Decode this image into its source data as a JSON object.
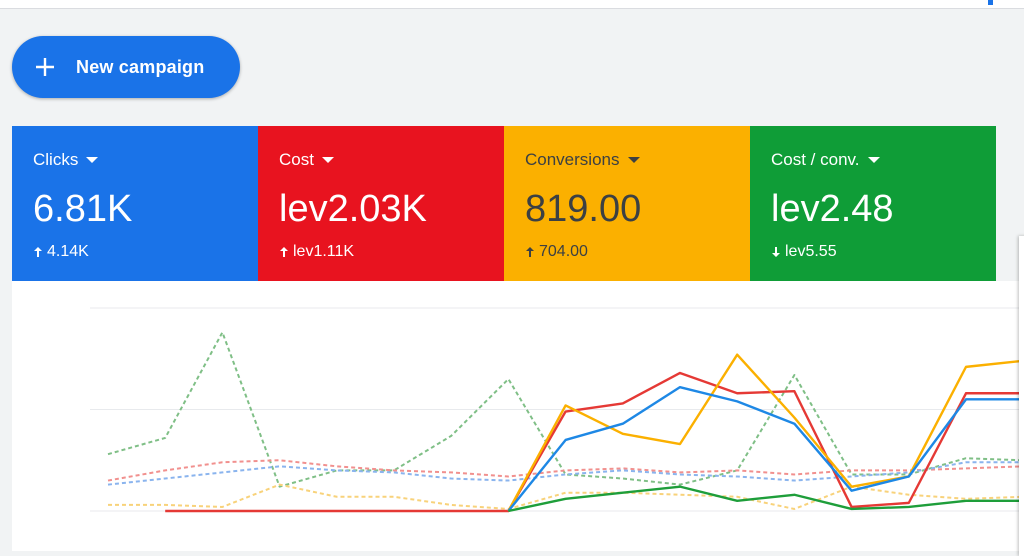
{
  "button": {
    "label": "New campaign"
  },
  "metrics": [
    {
      "label": "Clicks",
      "value": "6.81K",
      "change": "4.14K",
      "direction": "up",
      "color": "#1a73e8"
    },
    {
      "label": "Cost",
      "value": "lev2.03K",
      "change": "lev1.11K",
      "direction": "up",
      "color": "#e8131f"
    },
    {
      "label": "Conversions",
      "value": "819.00",
      "change": "704.00",
      "direction": "up",
      "color": "#fbb000"
    },
    {
      "label": "Cost / conv.",
      "value": "lev2.48",
      "change": "lev5.55",
      "direction": "down",
      "color": "#0f9d37"
    }
  ],
  "chart_data": {
    "type": "line",
    "ylim": [
      0,
      100
    ],
    "yticks": [
      0,
      50,
      100
    ],
    "grid": true,
    "series": [
      {
        "color": "#7fbf86",
        "dashed": true,
        "values": [
          28,
          36,
          88,
          12,
          20,
          20,
          37,
          65,
          18,
          16,
          13,
          20,
          67,
          18,
          18,
          26,
          25
        ]
      },
      {
        "color": "#f1908e",
        "dashed": true,
        "values": [
          15,
          20,
          24,
          25,
          22,
          20,
          19,
          17,
          20,
          21,
          19,
          20,
          18,
          20,
          20,
          21,
          22
        ]
      },
      {
        "color": "#8ab4ee",
        "dashed": true,
        "values": [
          13,
          16,
          19,
          22,
          20,
          19,
          16,
          15,
          18,
          20,
          18,
          17,
          15,
          17,
          19,
          24,
          24
        ]
      },
      {
        "color": "#f8d27a",
        "dashed": true,
        "values": [
          3,
          3,
          2,
          13,
          7,
          7,
          3,
          1,
          9,
          9,
          8,
          7,
          1,
          12,
          8,
          6,
          7
        ]
      },
      {
        "color": "#e53935",
        "dashed": false,
        "values": [
          null,
          0,
          0,
          0,
          0,
          0,
          0,
          0,
          49,
          53,
          68,
          58,
          59,
          2,
          4,
          58,
          58
        ]
      },
      {
        "color": "#fbb000",
        "dashed": false,
        "values": [
          null,
          null,
          null,
          null,
          null,
          null,
          null,
          0,
          52,
          38,
          33,
          77,
          46,
          12,
          17,
          71,
          74
        ]
      },
      {
        "color": "#1e88e5",
        "dashed": false,
        "values": [
          null,
          null,
          null,
          null,
          null,
          null,
          null,
          0,
          35,
          43,
          61,
          54,
          43,
          10,
          17,
          55,
          55
        ]
      },
      {
        "color": "#1e9e3a",
        "dashed": false,
        "values": [
          null,
          null,
          null,
          null,
          null,
          null,
          null,
          0,
          6,
          9,
          12,
          5,
          8,
          1,
          2,
          5,
          5
        ]
      }
    ]
  }
}
